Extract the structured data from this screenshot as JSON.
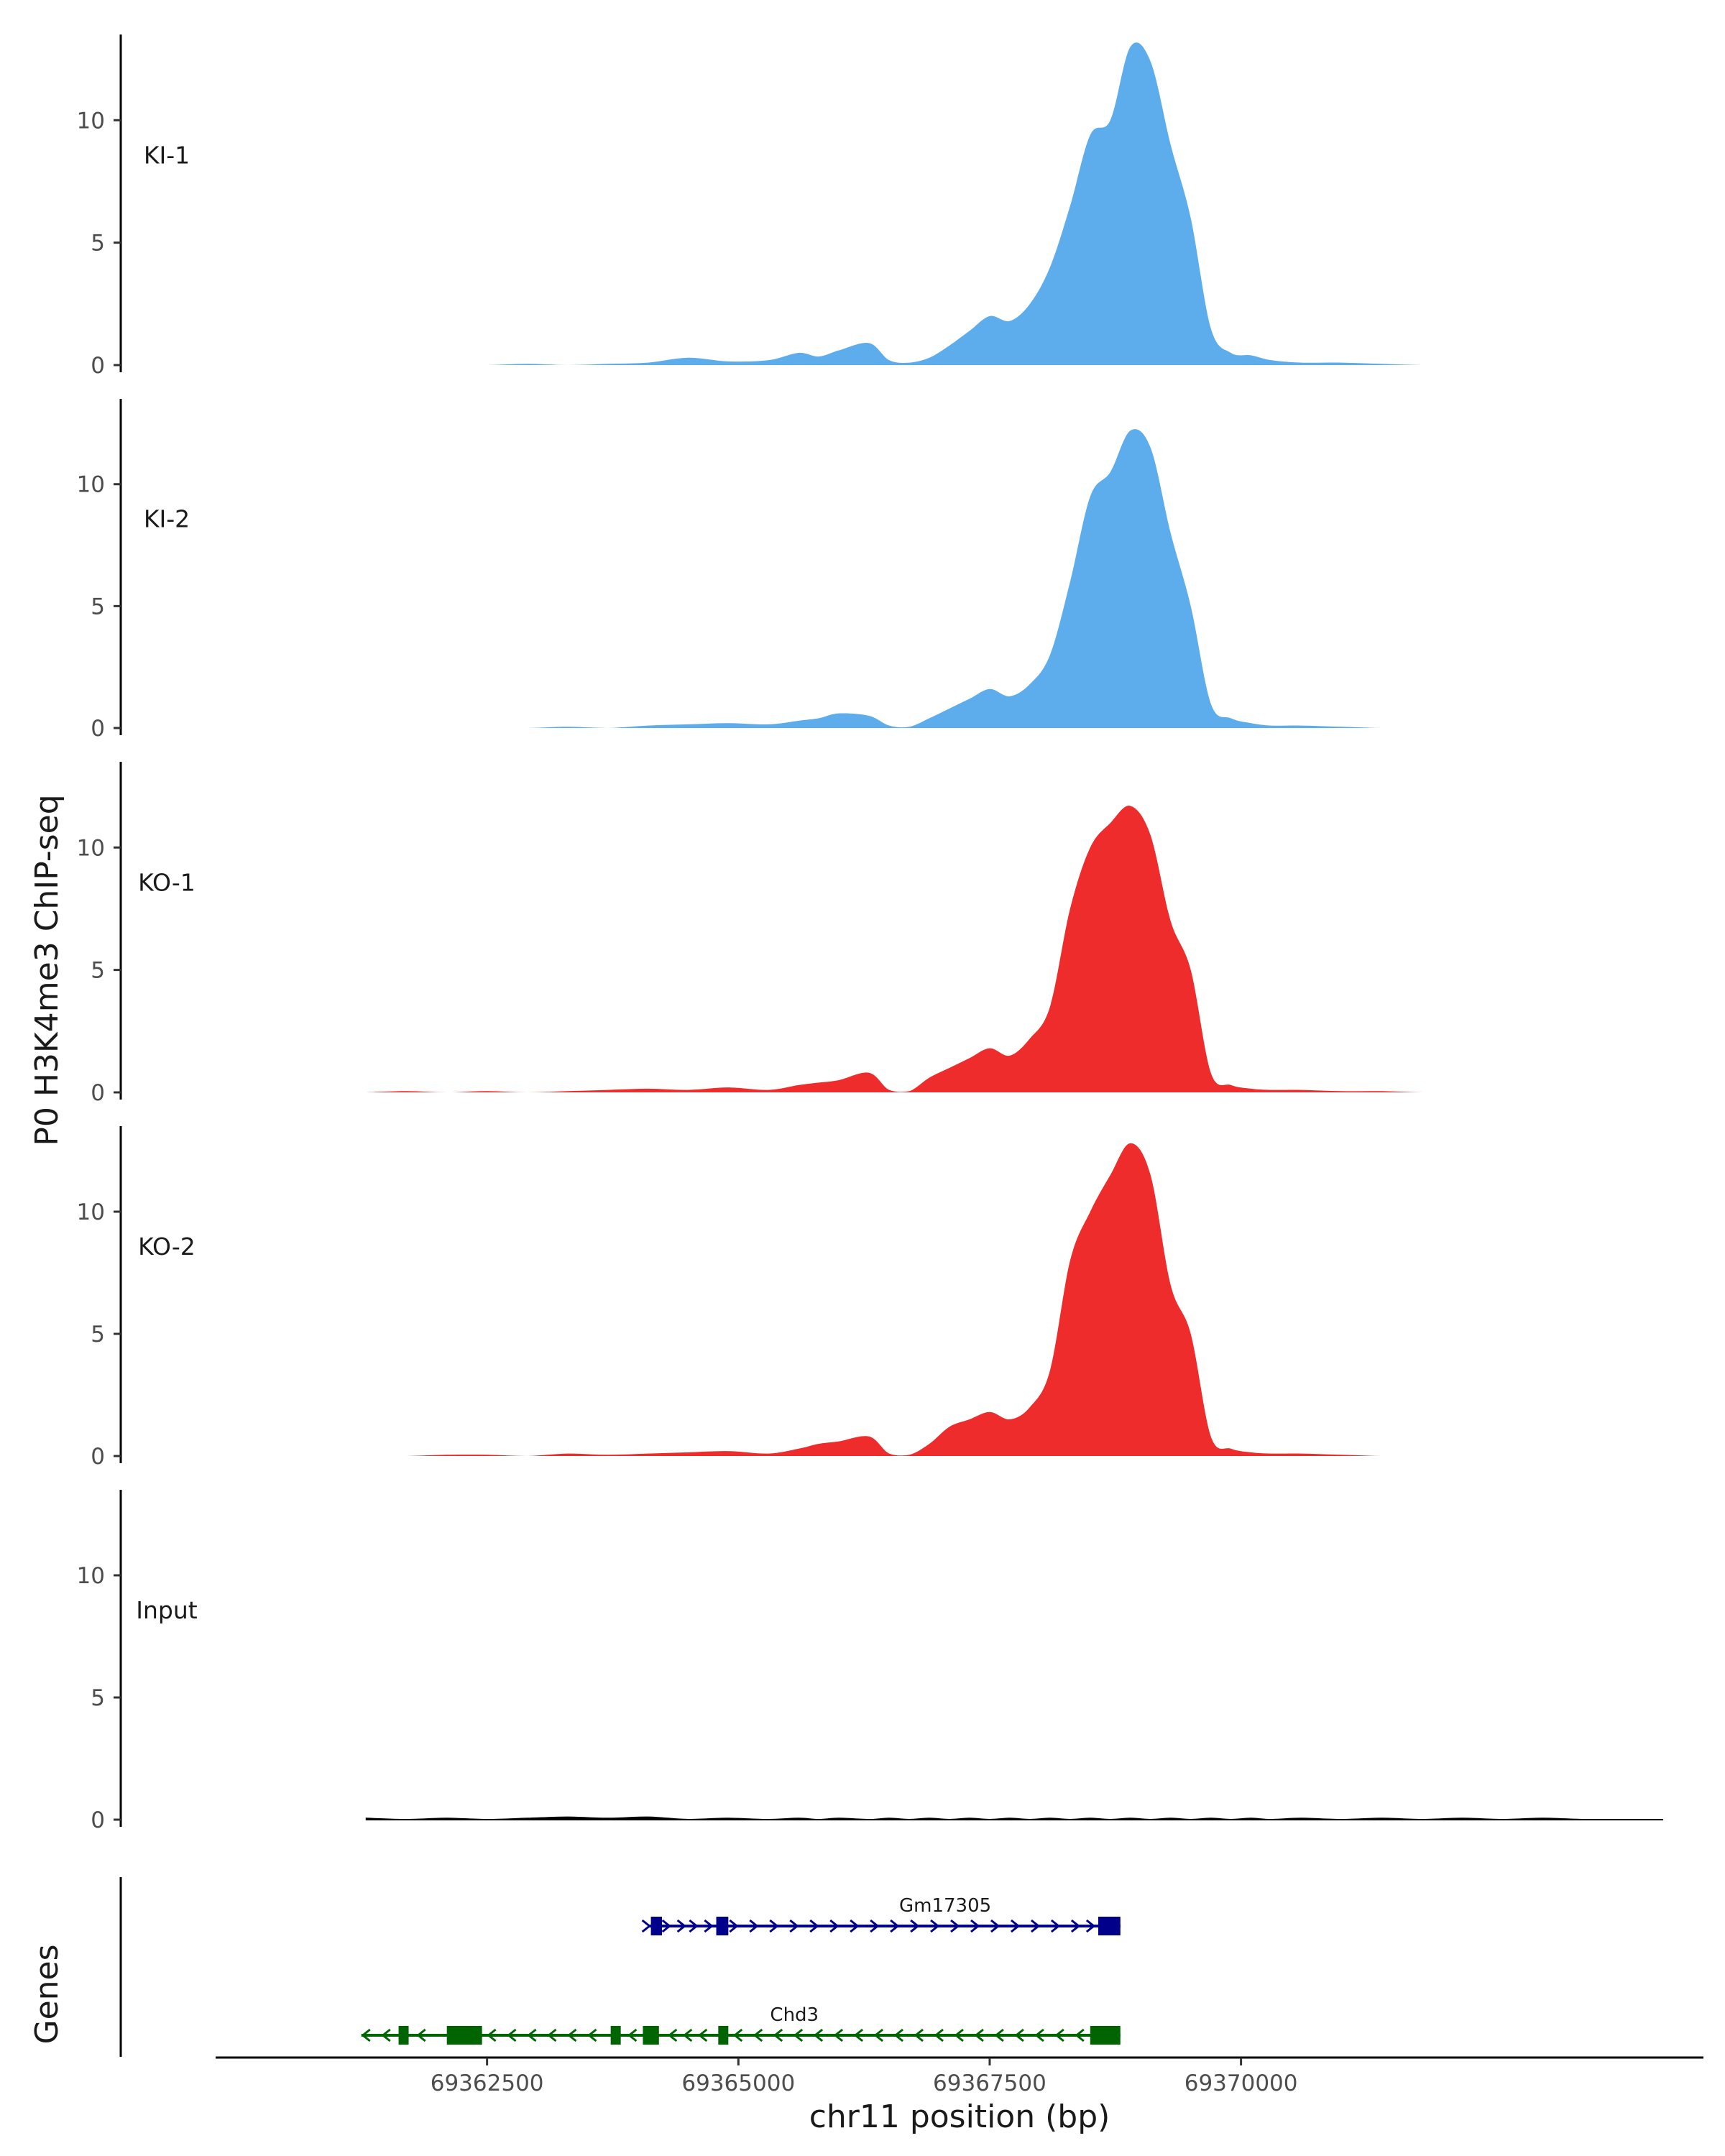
{
  "chart_data": {
    "type": "area",
    "ylabel": "P0 H3K4me3 ChIP-seq",
    "xlabel": "chr11 position (bp)",
    "xlim": [
      69359800,
      69374600
    ],
    "ylim": [
      0,
      13.5
    ],
    "y_ticks": [
      0,
      5,
      10
    ],
    "y_tick_labels": [
      "0",
      "5",
      "10"
    ],
    "x_ticks": [
      69362500,
      69365000,
      69367500,
      69370000
    ],
    "x_tick_labels": [
      "69362500",
      "69365000",
      "69367500",
      "69370000"
    ],
    "x": [
      69361300,
      69361700,
      69362100,
      69362500,
      69362900,
      69363300,
      69363700,
      69364100,
      69364500,
      69364900,
      69365300,
      69365600,
      69365800,
      69366000,
      69366300,
      69366500,
      69366700,
      69366900,
      69367100,
      69367300,
      69367500,
      69367700,
      69367900,
      69368100,
      69368300,
      69368500,
      69368700,
      69368900,
      69369100,
      69369300,
      69369500,
      69369700,
      69369900,
      69370100,
      69370300,
      69370600,
      69371000,
      69371400,
      69371800,
      69372200,
      69372600,
      69373000,
      69373400,
      69373800,
      69374200
    ],
    "series": [
      {
        "name": "KI-1",
        "color": "#5DADEC",
        "values": [
          0.0,
          0.0,
          0.0,
          0.0,
          0.05,
          0.0,
          0.05,
          0.1,
          0.3,
          0.15,
          0.2,
          0.5,
          0.35,
          0.6,
          0.9,
          0.2,
          0.1,
          0.3,
          0.8,
          1.4,
          2.0,
          1.8,
          2.5,
          4.0,
          6.5,
          9.4,
          10.0,
          13.0,
          12.4,
          9.0,
          6.0,
          1.5,
          0.5,
          0.4,
          0.2,
          0.1,
          0.1,
          0.05,
          0.0,
          0.0,
          0.0,
          0.0,
          0.0,
          0.0,
          0.0
        ]
      },
      {
        "name": "KI-2",
        "color": "#5DADEC",
        "values": [
          0.0,
          0.0,
          0.0,
          0.0,
          0.0,
          0.05,
          0.0,
          0.1,
          0.15,
          0.2,
          0.15,
          0.3,
          0.4,
          0.6,
          0.5,
          0.1,
          0.05,
          0.4,
          0.8,
          1.2,
          1.6,
          1.3,
          1.8,
          3.0,
          6.0,
          9.5,
          10.5,
          12.2,
          11.5,
          8.0,
          5.0,
          1.0,
          0.4,
          0.2,
          0.1,
          0.1,
          0.05,
          0.0,
          0.0,
          0.0,
          0.0,
          0.0,
          0.0,
          0.0,
          0.0
        ]
      },
      {
        "name": "KO-1",
        "color": "#EE2C2C",
        "values": [
          0.0,
          0.05,
          0.0,
          0.05,
          0.0,
          0.05,
          0.1,
          0.15,
          0.1,
          0.2,
          0.1,
          0.3,
          0.4,
          0.5,
          0.8,
          0.1,
          0.05,
          0.6,
          1.0,
          1.4,
          1.8,
          1.5,
          2.2,
          3.5,
          7.5,
          10.0,
          11.0,
          11.7,
          10.5,
          7.0,
          5.0,
          0.8,
          0.3,
          0.15,
          0.1,
          0.1,
          0.05,
          0.05,
          0.0,
          0.0,
          0.0,
          0.0,
          0.0,
          0.0,
          0.0
        ]
      },
      {
        "name": "KO-2",
        "color": "#EE2C2C",
        "values": [
          0.0,
          0.0,
          0.05,
          0.05,
          0.0,
          0.1,
          0.05,
          0.1,
          0.15,
          0.2,
          0.1,
          0.3,
          0.5,
          0.6,
          0.8,
          0.1,
          0.05,
          0.5,
          1.2,
          1.5,
          1.8,
          1.5,
          2.0,
          3.5,
          8.0,
          10.0,
          11.5,
          12.8,
          11.5,
          7.0,
          5.0,
          0.8,
          0.3,
          0.15,
          0.1,
          0.1,
          0.05,
          0.0,
          0.0,
          0.0,
          0.0,
          0.0,
          0.0,
          0.0,
          0.0
        ]
      },
      {
        "name": "Input",
        "color": "#000000",
        "values": [
          0.05,
          0.0,
          0.05,
          0.0,
          0.05,
          0.1,
          0.05,
          0.1,
          0.0,
          0.05,
          0.0,
          0.05,
          0.0,
          0.05,
          0.0,
          0.05,
          0.0,
          0.05,
          0.0,
          0.05,
          0.0,
          0.05,
          0.0,
          0.05,
          0.0,
          0.05,
          0.0,
          0.05,
          0.0,
          0.05,
          0.0,
          0.05,
          0.0,
          0.05,
          0.0,
          0.05,
          0.0,
          0.05,
          0.0,
          0.05,
          0.0,
          0.05,
          0.0,
          0.0,
          0.0
        ]
      }
    ],
    "genes_track_label": "Genes",
    "genes": [
      {
        "name": "Gm17305",
        "color": "#00008B",
        "strand": "+",
        "start": 69364100,
        "end": 69368800,
        "exons": [
          [
            69364130,
            69364240
          ],
          [
            69364780,
            69364900
          ],
          [
            69368580,
            69368800
          ]
        ],
        "arrows": [
          69364080,
          69364280,
          69364430,
          69364550,
          69364700,
          69364950,
          69365150,
          69365350,
          69365550,
          69365750,
          69365950,
          69366150,
          69366350,
          69366550,
          69366750,
          69366950,
          69367150,
          69367350,
          69367550,
          69367750,
          69367950,
          69368150,
          69368350,
          69368500
        ]
      },
      {
        "name": "Chd3",
        "color": "#006400",
        "strand": "-",
        "start": 69361250,
        "end": 69368800,
        "exons": [
          [
            69361620,
            69361720
          ],
          [
            69362100,
            69362450
          ],
          [
            69363730,
            69363830
          ],
          [
            69364050,
            69364210
          ],
          [
            69364800,
            69364900
          ],
          [
            69368500,
            69368800
          ]
        ],
        "arrows": [
          69361300,
          69361500,
          69361850,
          69362550,
          69362750,
          69362950,
          69363150,
          69363350,
          69363550,
          69363950,
          69364350,
          69364500,
          69364650,
          69365000,
          69365200,
          69365400,
          69365600,
          69365800,
          69366000,
          69366200,
          69366400,
          69366600,
          69366800,
          69367000,
          69367200,
          69367400,
          69367600,
          69367800,
          69368000,
          69368200,
          69368400
        ]
      }
    ]
  }
}
